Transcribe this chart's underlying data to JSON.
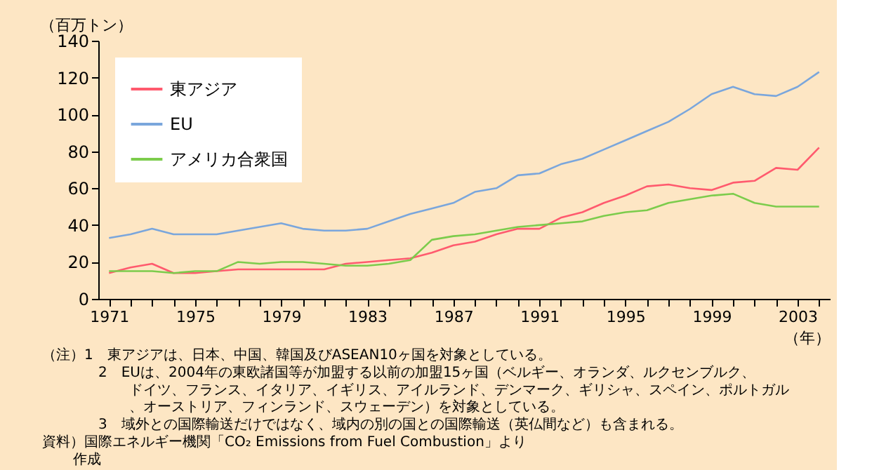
{
  "chart_data": {
    "type": "line",
    "ylabel": "（百万トン）",
    "xlabel": "（年）",
    "x": [
      1971,
      1972,
      1973,
      1974,
      1975,
      1976,
      1977,
      1978,
      1979,
      1980,
      1981,
      1982,
      1983,
      1984,
      1985,
      1986,
      1987,
      1988,
      1989,
      1990,
      1991,
      1992,
      1993,
      1994,
      1995,
      1996,
      1997,
      1998,
      1999,
      2000,
      2001,
      2002,
      2003,
      2004
    ],
    "series": [
      {
        "name": "東アジア",
        "color": "#ff5a6e",
        "values": [
          14,
          17,
          19,
          14,
          14,
          15,
          16,
          16,
          16,
          16,
          16,
          19,
          20,
          21,
          22,
          25,
          29,
          31,
          35,
          38,
          38,
          44,
          47,
          52,
          56,
          61,
          62,
          60,
          59,
          63,
          64,
          71,
          70,
          82
        ]
      },
      {
        "name": "EU",
        "color": "#7aa6dc",
        "values": [
          33,
          35,
          38,
          35,
          35,
          35,
          37,
          39,
          41,
          38,
          37,
          37,
          38,
          42,
          46,
          49,
          52,
          58,
          60,
          67,
          68,
          73,
          76,
          81,
          86,
          91,
          96,
          103,
          111,
          115,
          111,
          110,
          115,
          123
        ]
      },
      {
        "name": "アメリカ合衆国",
        "color": "#7ccc4c",
        "values": [
          15,
          15,
          15,
          14,
          15,
          15,
          20,
          19,
          20,
          20,
          19,
          18,
          18,
          19,
          21,
          32,
          34,
          35,
          37,
          39,
          40,
          41,
          42,
          45,
          47,
          48,
          52,
          54,
          56,
          57,
          52,
          50,
          50,
          50
        ]
      }
    ],
    "xlim": [
      1970.5,
      2004.5
    ],
    "xticks": [
      1971,
      {
        "value": 1972,
        "label": null
      },
      {
        "value": 1973,
        "label": null
      },
      {
        "value": 1974,
        "label": null
      },
      1975,
      {
        "value": 1976,
        "label": null
      },
      {
        "value": 1977,
        "label": null
      },
      {
        "value": 1978,
        "label": null
      },
      1979,
      {
        "value": 1980,
        "label": null
      },
      {
        "value": 1981,
        "label": null
      },
      {
        "value": 1982,
        "label": null
      },
      1983,
      {
        "value": 1984,
        "label": null
      },
      {
        "value": 1985,
        "label": null
      },
      {
        "value": 1986,
        "label": null
      },
      1987,
      {
        "value": 1988,
        "label": null
      },
      {
        "value": 1989,
        "label": null
      },
      {
        "value": 1990,
        "label": null
      },
      1991,
      {
        "value": 1992,
        "label": null
      },
      {
        "value": 1993,
        "label": null
      },
      {
        "value": 1994,
        "label": null
      },
      1995,
      {
        "value": 1996,
        "label": null
      },
      {
        "value": 1997,
        "label": null
      },
      {
        "value": 1998,
        "label": null
      },
      1999,
      {
        "value": 2000,
        "label": null
      },
      {
        "value": 2001,
        "label": null
      },
      {
        "value": 2002,
        "label": null
      },
      2003,
      {
        "value": 2004,
        "label": null
      }
    ],
    "ylim": [
      0,
      140
    ],
    "yticks": [
      0,
      20,
      40,
      60,
      80,
      100,
      120,
      140
    ],
    "grid": false,
    "legend": "top left",
    "annotations": [
      "（注）1　東アジアは、日本、中国、韓国及びASEAN10ヶ国を対象としている。",
      "2　EUは、2004年の東欧諸国等が加盟する以前の加盟15ヶ国（ベルギー、オランダ、ルクセンブルク、ドイツ、フランス、イタリア、イギリス、アイルランド、デンマーク、ギリシャ、スペイン、ポルトガル、オーストリア、フィンランド、スウェーデン）を対象としている。",
      "3　域外との国際輸送だけではなく、域内の別の国との国際輸送（英仏間など）も含まれる。",
      "資料）国際エネルギー機関「CO₂ Emissions from Fuel Combustion」より作成"
    ]
  }
}
